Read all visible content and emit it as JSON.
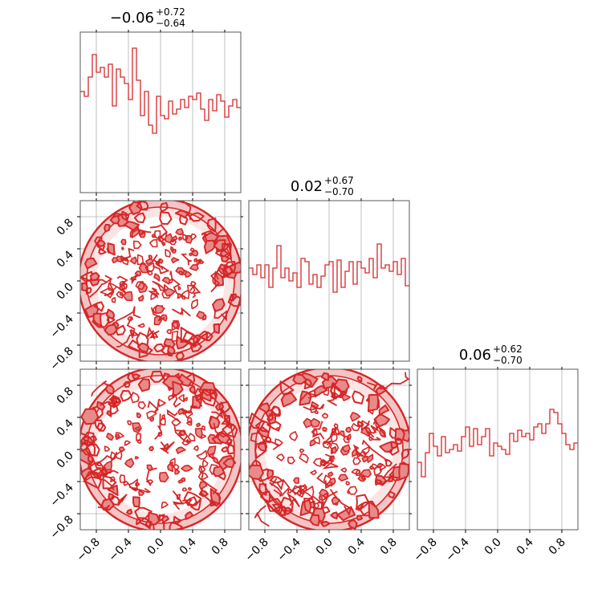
{
  "chart_data": {
    "type": "corner",
    "color": "#d62728",
    "tick_values": [
      -0.8,
      -0.4,
      0.0,
      0.4,
      0.8
    ],
    "tick_labels": [
      "−0.8",
      "−0.4",
      "0.0",
      "0.4",
      "0.8"
    ],
    "range": [
      -1.0,
      1.0
    ],
    "grid": true,
    "parameters": [
      {
        "title_median": "−0.06",
        "title_upper": "+0.72",
        "title_lower": "−0.64",
        "hist_bins": 40,
        "hist_values": [
          0.63,
          0.6,
          0.72,
          0.86,
          0.75,
          0.78,
          0.72,
          0.8,
          0.54,
          0.77,
          0.72,
          0.68,
          0.58,
          0.9,
          0.7,
          0.48,
          0.63,
          0.42,
          0.37,
          0.6,
          0.48,
          0.46,
          0.57,
          0.49,
          0.52,
          0.58,
          0.53,
          0.6,
          0.58,
          0.62,
          0.52,
          0.45,
          0.58,
          0.51,
          0.61,
          0.57,
          0.47,
          0.54,
          0.58,
          0.53
        ]
      },
      {
        "title_median": "0.02",
        "title_upper": "+0.67",
        "title_lower": "−0.70",
        "hist_bins": 40,
        "hist_values": [
          0.58,
          0.54,
          0.6,
          0.52,
          0.6,
          0.46,
          0.58,
          0.72,
          0.52,
          0.58,
          0.5,
          0.55,
          0.46,
          0.64,
          0.62,
          0.48,
          0.54,
          0.46,
          0.53,
          0.6,
          0.62,
          0.43,
          0.63,
          0.46,
          0.56,
          0.62,
          0.48,
          0.62,
          0.58,
          0.55,
          0.64,
          0.52,
          0.73,
          0.58,
          0.6,
          0.56,
          0.62,
          0.54,
          0.64,
          0.47
        ]
      },
      {
        "title_median": "0.06",
        "title_upper": "+0.62",
        "title_lower": "−0.70",
        "hist_bins": 40,
        "hist_values": [
          0.42,
          0.33,
          0.48,
          0.6,
          0.52,
          0.46,
          0.58,
          0.48,
          0.5,
          0.53,
          0.49,
          0.58,
          0.64,
          0.52,
          0.63,
          0.53,
          0.58,
          0.63,
          0.46,
          0.54,
          0.52,
          0.5,
          0.47,
          0.6,
          0.55,
          0.62,
          0.58,
          0.6,
          0.56,
          0.64,
          0.66,
          0.6,
          0.66,
          0.75,
          0.73,
          0.66,
          0.6,
          0.53,
          0.5,
          0.54
        ]
      }
    ],
    "contour_panels": [
      {
        "row": 1,
        "col": 0
      },
      {
        "row": 2,
        "col": 0
      },
      {
        "row": 2,
        "col": 1
      }
    ]
  }
}
